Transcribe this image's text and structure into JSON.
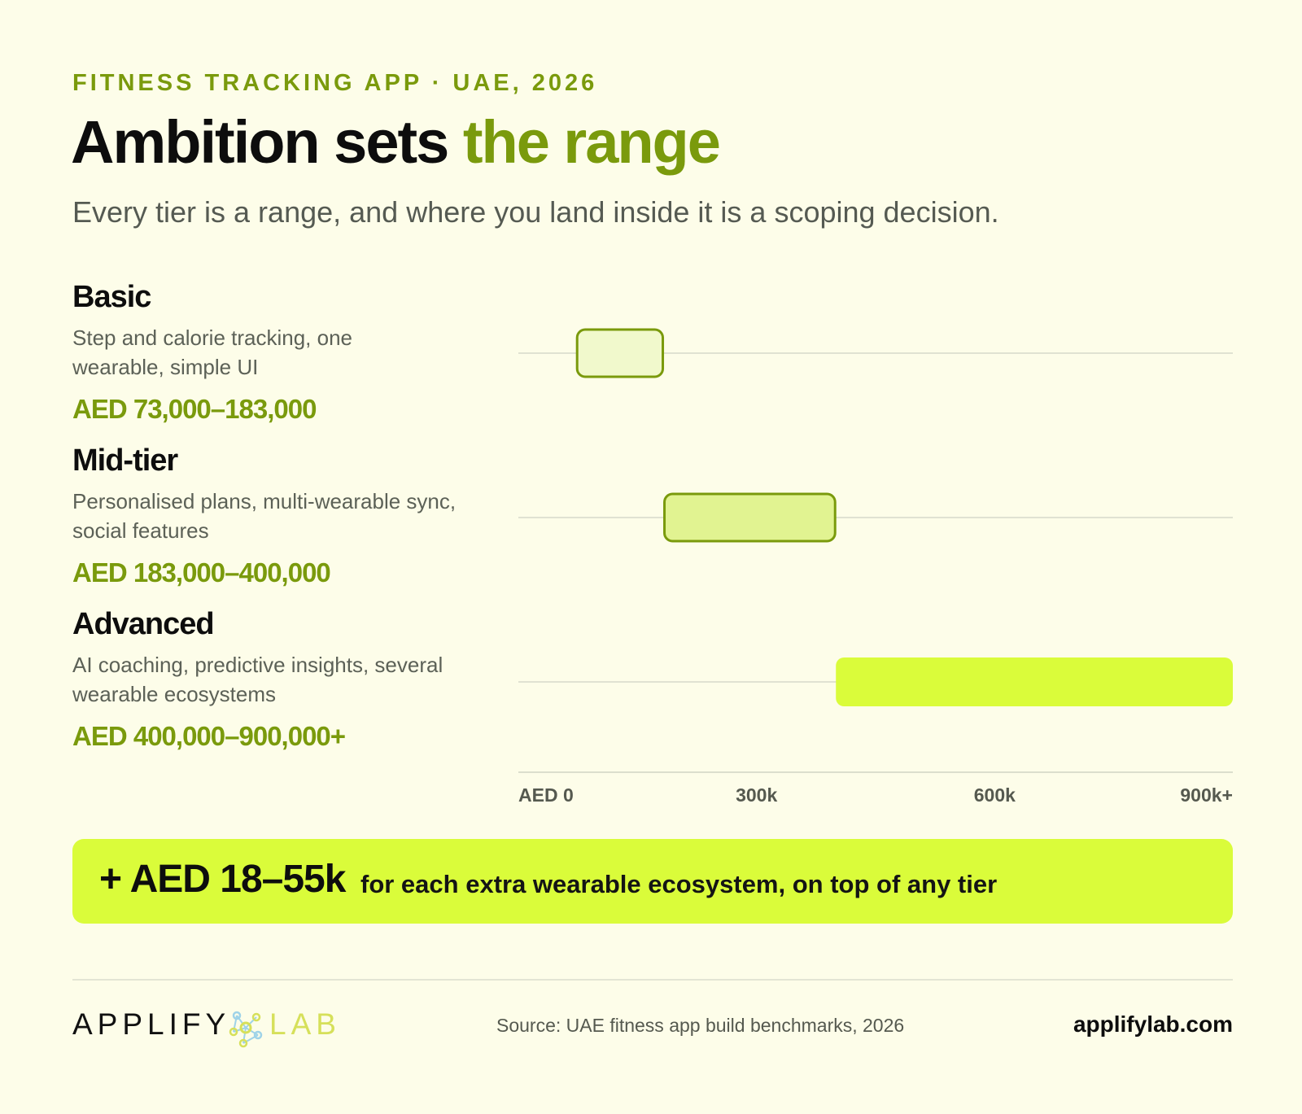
{
  "header": {
    "kicker": "FITNESS TRACKING APP · UAE, 2026",
    "title_main": "Ambition sets ",
    "title_accent": "the range",
    "subtitle": "Every tier is a range, and where you land inside it is a scoping decision."
  },
  "tiers": [
    {
      "name": "Basic",
      "description": "Step and calorie tracking, one wearable, simple UI",
      "price": "AED 73,000–183,000"
    },
    {
      "name": "Mid-tier",
      "description": "Personalised plans, multi-wearable sync, social features",
      "price": "AED 183,000–400,000"
    },
    {
      "name": "Advanced",
      "description": "AI coaching, predictive insights, several wearable ecosystems",
      "price": "AED 400,000–900,000+"
    }
  ],
  "chart_data": {
    "type": "bar",
    "orientation": "horizontal-range",
    "categories": [
      "Basic",
      "Mid-tier",
      "Advanced"
    ],
    "ranges": [
      [
        73000,
        183000
      ],
      [
        183000,
        400000
      ],
      [
        400000,
        900000
      ]
    ],
    "xlim": [
      0,
      900000
    ],
    "ticks": [
      0,
      300000,
      600000,
      900000
    ],
    "tick_labels": [
      "AED 0",
      "300k",
      "600k",
      "900k+"
    ],
    "bar_colors": [
      "#f1f9cc",
      "#e1f391",
      "#dafc3a"
    ],
    "bar_outline": "#7a9a0c"
  },
  "banner": {
    "amount": "+ AED 18–55k",
    "text": "for each extra wearable ecosystem, on top of any tier"
  },
  "footer": {
    "logo_part1": "APPLIFY",
    "logo_part2": "LAB",
    "logo_icon": "molecule-icon",
    "source": "Source: UAE fitness app build benchmarks, 2026",
    "site": "applifylab.com"
  }
}
